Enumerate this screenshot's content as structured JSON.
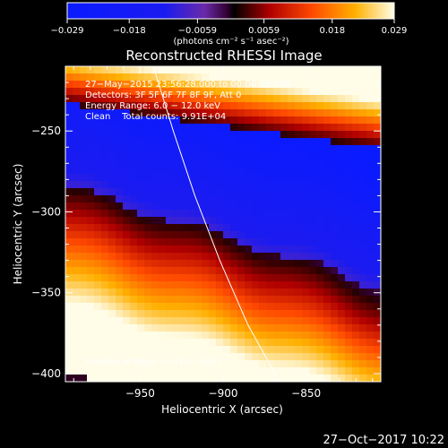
{
  "chart_data": {
    "type": "heatmap",
    "title": "Reconstructed RHESSI Image",
    "xlabel": "Heliocentric X (arcsec)",
    "ylabel": "Heliocentric Y (arcsec)",
    "xlim": [
      -995,
      -805
    ],
    "ylim": [
      -405,
      -210
    ],
    "x_ticks": [
      {
        "value": -950,
        "label": "−950"
      },
      {
        "value": -900,
        "label": "−900"
      },
      {
        "value": -850,
        "label": "−850"
      }
    ],
    "y_ticks": [
      {
        "value": -250,
        "label": "−250"
      },
      {
        "value": -300,
        "label": "−300"
      },
      {
        "value": -350,
        "label": "−350"
      },
      {
        "value": -400,
        "label": "−400"
      }
    ],
    "colorbar": {
      "range": [
        -0.029,
        0.029
      ],
      "ticks": [
        {
          "value": -0.029,
          "label": "−0.029"
        },
        {
          "value": -0.018,
          "label": "−0.018"
        },
        {
          "value": -0.0059,
          "label": "−0.0059"
        },
        {
          "value": 0.0059,
          "label": "0.0059"
        },
        {
          "value": 0.018,
          "label": "0.018"
        },
        {
          "value": 0.029,
          "label": "0.029"
        }
      ],
      "units": "(photons cm⁻² s⁻¹ asec⁻²)"
    },
    "annotations": [
      "27−May−2015 23:56:28.000 to 00:06:28.000",
      "Detectors: 3F 5F 6F 7F 8F 9F, Att 0",
      "Energy Range: 6.0 − 12.0 keV",
      "Clean    Total counts: 9.91E+04",
      "Position of Peak: (−915,−405)"
    ],
    "limb_curve": [
      [
        -942,
        -210
      ],
      [
        -930,
        -250
      ],
      [
        -917,
        -290
      ],
      [
        -902,
        -330
      ],
      [
        -885,
        -370
      ],
      [
        -866,
        -405
      ]
    ],
    "grid": false
  },
  "timestamp": "27−Oct−2017 10:22",
  "colors": {
    "background": "#000000",
    "foreground": "#ffffff",
    "colormap": [
      "#0a1bff",
      "#2a1fd0",
      "#6a2aa8",
      "#a01e66",
      "#3a0000",
      "#c40000",
      "#ff5500",
      "#ffc000",
      "#fff060",
      "#fffde0"
    ]
  }
}
